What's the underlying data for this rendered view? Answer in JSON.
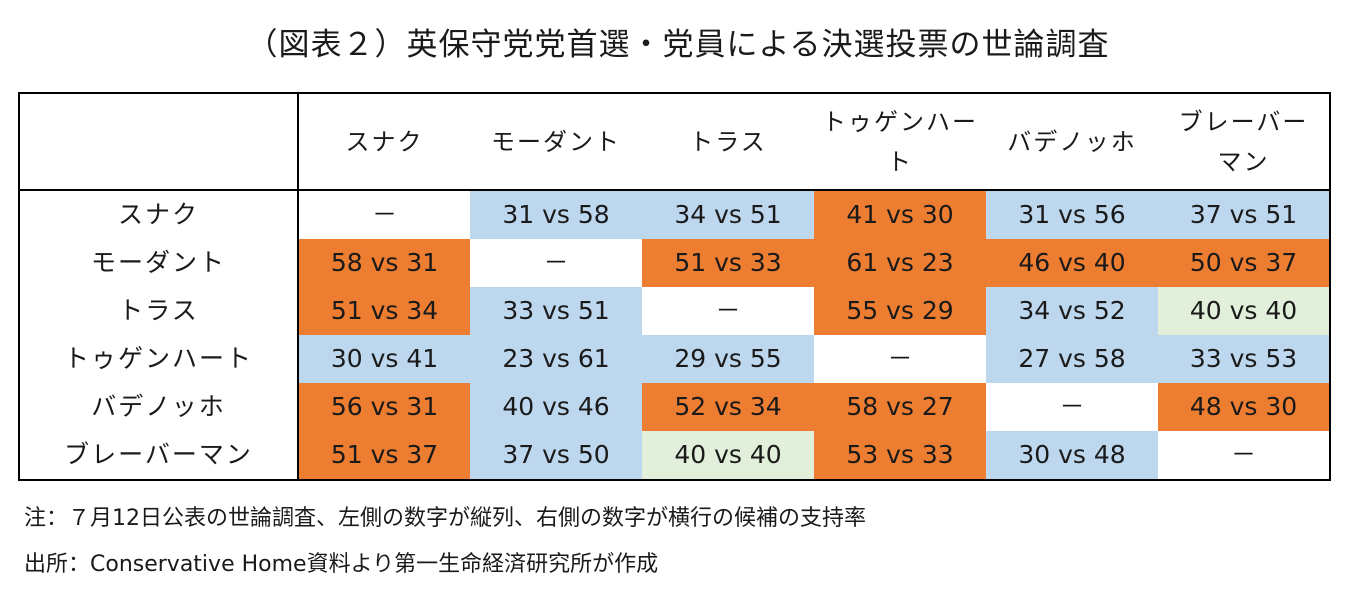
{
  "title": "（図表２）英保守党党首選・党員による決選投票の世論調査",
  "corner_label": "",
  "columns": [
    {
      "label": "スナク"
    },
    {
      "label": "モーダント"
    },
    {
      "label": "トラス"
    },
    {
      "label": "トゥゲンハート"
    },
    {
      "label": "バデノッホ"
    },
    {
      "label": "ブレーバーマン"
    }
  ],
  "rows": [
    {
      "label": "スナク",
      "cells": [
        {
          "text": "－",
          "color": "white"
        },
        {
          "text": "31 vs 58",
          "color": "blue"
        },
        {
          "text": "34 vs 51",
          "color": "blue"
        },
        {
          "text": "41 vs 30",
          "color": "orange"
        },
        {
          "text": "31 vs 56",
          "color": "blue"
        },
        {
          "text": "37 vs 51",
          "color": "blue"
        }
      ]
    },
    {
      "label": "モーダント",
      "cells": [
        {
          "text": "58 vs 31",
          "color": "orange"
        },
        {
          "text": "－",
          "color": "white"
        },
        {
          "text": "51 vs 33",
          "color": "orange"
        },
        {
          "text": "61 vs 23",
          "color": "orange"
        },
        {
          "text": "46 vs 40",
          "color": "orange"
        },
        {
          "text": "50 vs 37",
          "color": "orange"
        }
      ]
    },
    {
      "label": "トラス",
      "cells": [
        {
          "text": "51 vs 34",
          "color": "orange"
        },
        {
          "text": "33 vs 51",
          "color": "blue"
        },
        {
          "text": "－",
          "color": "white"
        },
        {
          "text": "55 vs 29",
          "color": "orange"
        },
        {
          "text": "34 vs 52",
          "color": "blue"
        },
        {
          "text": "40 vs 40",
          "color": "green"
        }
      ]
    },
    {
      "label": "トゥゲンハート",
      "cells": [
        {
          "text": "30 vs 41",
          "color": "blue"
        },
        {
          "text": "23 vs 61",
          "color": "blue"
        },
        {
          "text": "29 vs 55",
          "color": "blue"
        },
        {
          "text": "－",
          "color": "white"
        },
        {
          "text": "27 vs 58",
          "color": "blue"
        },
        {
          "text": "33 vs 53",
          "color": "blue"
        }
      ]
    },
    {
      "label": "バデノッホ",
      "cells": [
        {
          "text": "56 vs 31",
          "color": "orange"
        },
        {
          "text": "40 vs 46",
          "color": "blue"
        },
        {
          "text": "52 vs 34",
          "color": "orange"
        },
        {
          "text": "58 vs 27",
          "color": "orange"
        },
        {
          "text": "－",
          "color": "white"
        },
        {
          "text": "48 vs 30",
          "color": "orange"
        }
      ]
    },
    {
      "label": "ブレーバーマン",
      "cells": [
        {
          "text": "51 vs 37",
          "color": "orange"
        },
        {
          "text": "37 vs 50",
          "color": "blue"
        },
        {
          "text": "40 vs 40",
          "color": "green"
        },
        {
          "text": "53 vs 33",
          "color": "orange"
        },
        {
          "text": "30 vs 48",
          "color": "blue"
        },
        {
          "text": "－",
          "color": "white"
        }
      ]
    }
  ],
  "colors": {
    "orange": "#ed7d31",
    "blue": "#bdd7ee",
    "green": "#e2efda",
    "white": "#ffffff"
  },
  "notes": {
    "note": "注：７月12日公表の世論調査、左側の数字が縦列、右側の数字が横行の候補の支持率",
    "source": "出所：Conservative Home資料より第一生命経済研究所が作成"
  }
}
